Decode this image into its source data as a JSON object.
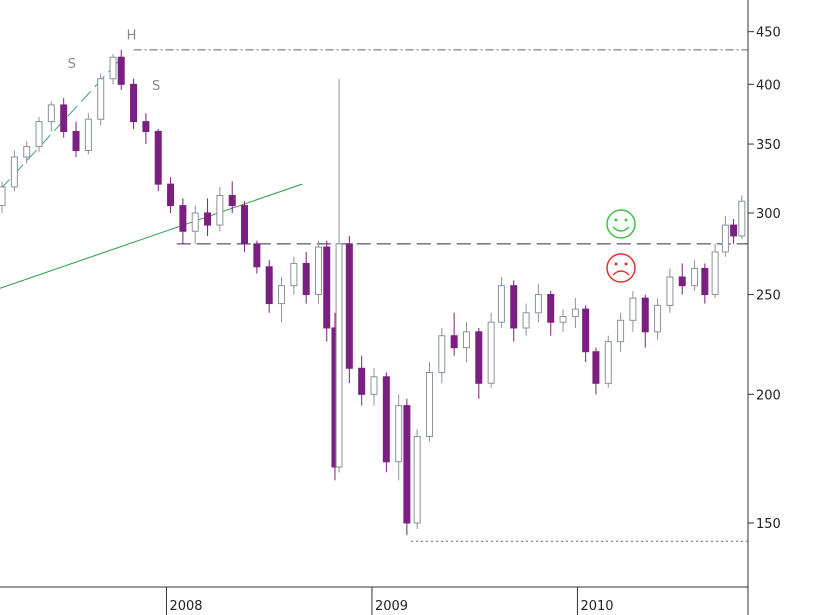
{
  "chart_data": {
    "type": "candlestick",
    "x": [
      2007.2,
      2007.26,
      2007.32,
      2007.38,
      2007.44,
      2007.5,
      2007.56,
      2007.62,
      2007.68,
      2007.74,
      2007.78,
      2007.84,
      2007.9,
      2007.96,
      2008.02,
      2008.08,
      2008.14,
      2008.2,
      2008.26,
      2008.32,
      2008.38,
      2008.44,
      2008.5,
      2008.56,
      2008.62,
      2008.68,
      2008.74,
      2008.78,
      2008.82,
      2008.84,
      2008.89,
      2008.95,
      2009.01,
      2009.07,
      2009.13,
      2009.17,
      2009.22,
      2009.28,
      2009.34,
      2009.4,
      2009.46,
      2009.52,
      2009.58,
      2009.63,
      2009.69,
      2009.75,
      2009.81,
      2009.87,
      2009.93,
      2009.99,
      2010.04,
      2010.09,
      2010.15,
      2010.21,
      2010.27,
      2010.33,
      2010.39,
      2010.45,
      2010.51,
      2010.57,
      2010.62,
      2010.67,
      2010.72,
      2010.76,
      2010.8
    ],
    "open": [
      305,
      318,
      340,
      348,
      368,
      382,
      360,
      345,
      370,
      405,
      425,
      400,
      368,
      360,
      320,
      305,
      288,
      300,
      292,
      312,
      305,
      280,
      266,
      245,
      255,
      268,
      250,
      278,
      232,
      170,
      280,
      212,
      200,
      208,
      172,
      195,
      150,
      182,
      210,
      228,
      222,
      230,
      205,
      235,
      255,
      232,
      240,
      250,
      235,
      238,
      242,
      220,
      205,
      225,
      236,
      248,
      230,
      244,
      260,
      255,
      265,
      250,
      275,
      292,
      285
    ],
    "high": [
      322,
      345,
      352,
      372,
      385,
      388,
      368,
      375,
      410,
      428,
      432,
      405,
      375,
      362,
      325,
      310,
      305,
      310,
      318,
      322,
      308,
      282,
      270,
      260,
      272,
      275,
      282,
      282,
      240,
      405,
      285,
      218,
      212,
      210,
      200,
      198,
      185,
      215,
      232,
      240,
      235,
      232,
      240,
      260,
      258,
      245,
      256,
      252,
      242,
      248,
      244,
      222,
      228,
      240,
      252,
      250,
      248,
      265,
      268,
      270,
      268,
      280,
      298,
      296,
      312
    ],
    "low": [
      300,
      315,
      335,
      344,
      360,
      355,
      340,
      342,
      365,
      400,
      395,
      362,
      350,
      315,
      300,
      280,
      280,
      285,
      288,
      300,
      275,
      262,
      240,
      235,
      250,
      245,
      245,
      225,
      165,
      168,
      205,
      195,
      195,
      168,
      165,
      146,
      148,
      180,
      205,
      218,
      215,
      198,
      203,
      232,
      225,
      228,
      235,
      228,
      230,
      232,
      215,
      200,
      203,
      220,
      230,
      222,
      226,
      240,
      250,
      252,
      245,
      248,
      272,
      280,
      283
    ],
    "close": [
      318,
      340,
      348,
      368,
      382,
      360,
      345,
      370,
      405,
      425,
      400,
      368,
      360,
      320,
      305,
      288,
      300,
      292,
      312,
      305,
      280,
      266,
      245,
      255,
      268,
      250,
      278,
      232,
      170,
      280,
      212,
      200,
      208,
      172,
      195,
      150,
      182,
      210,
      228,
      222,
      230,
      205,
      235,
      255,
      232,
      240,
      250,
      235,
      238,
      242,
      220,
      205,
      225,
      236,
      248,
      230,
      244,
      260,
      255,
      265,
      250,
      275,
      292,
      285,
      308
    ],
    "up_color": "#ffffff",
    "up_edge_color": "#8a949a",
    "down_color": "#7b1f80",
    "xlim": [
      2007.19,
      2010.83
    ],
    "xticks": [
      2008,
      2009,
      2010
    ],
    "ylim": [
      130,
      483
    ],
    "yticks": [
      150,
      200,
      250,
      300,
      350,
      400,
      450
    ],
    "log_y": true,
    "levels": [
      {
        "value": 432,
        "from": 2007.84,
        "style": "dashdot",
        "color": "#666666"
      },
      {
        "value": 280,
        "from": 2008.05,
        "style": "dashed",
        "color": "#2a2a5a"
      },
      {
        "value": 144,
        "from": 2009.19,
        "style": "dotted",
        "color": "#666666"
      }
    ],
    "lines": [
      {
        "x": [
          2007.19,
          2007.77
        ],
        "y": [
          316,
          422
        ],
        "style": "dashed",
        "color": "#3a9a9a"
      },
      {
        "x": [
          2007.19,
          2008.66
        ],
        "y": [
          253.5,
          320
        ],
        "style": "solid",
        "color": "#2e9a4a"
      }
    ],
    "annotations": [
      {
        "text": "H",
        "x": 2007.83,
        "y": 442
      },
      {
        "text": "S",
        "x": 2007.54,
        "y": 415
      },
      {
        "text": "S",
        "x": 2007.95,
        "y": 395
      }
    ]
  }
}
